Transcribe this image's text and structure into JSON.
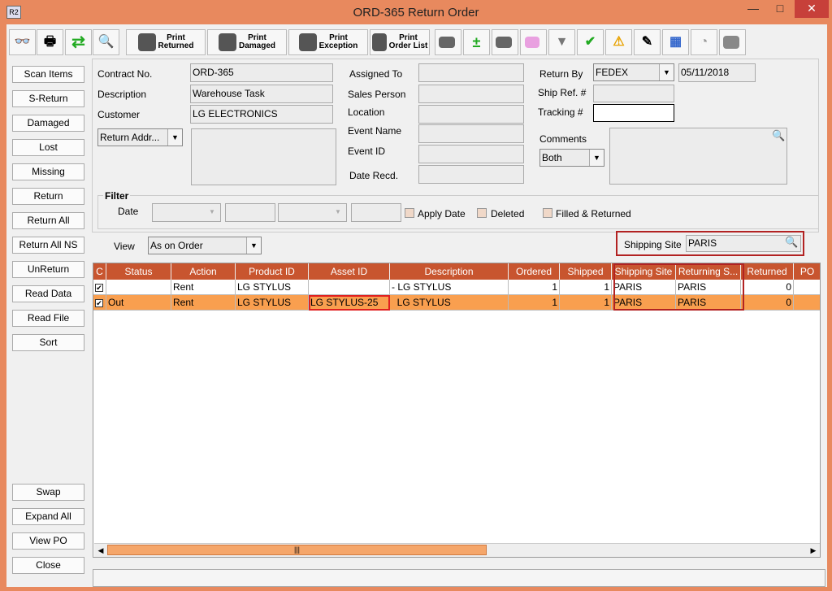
{
  "window": {
    "title": "ORD-365 Return Order",
    "icon_text": "R2"
  },
  "toolbar": {
    "print_returned": [
      "Print",
      "Returned"
    ],
    "print_damaged": [
      "Print",
      "Damaged"
    ],
    "print_exception": [
      "Print",
      "Exception"
    ],
    "print_order_list": [
      "Print",
      "Order List"
    ]
  },
  "left_buttons": [
    "Scan Items",
    "S-Return",
    "Damaged",
    "Lost",
    "Missing",
    "Return",
    "Return All",
    "Return All NS",
    "UnReturn",
    "Read Data",
    "Read File",
    "Sort"
  ],
  "bottom_buttons": [
    "Swap",
    "Expand All",
    "View PO",
    "Close"
  ],
  "form": {
    "contract_no_label": "Contract No.",
    "contract_no": "ORD-365",
    "description_label": "Description",
    "description": "Warehouse Task",
    "customer_label": "Customer",
    "customer": "LG ELECTRONICS",
    "return_addr": "Return Addr...",
    "assigned_to_label": "Assigned To",
    "sales_person_label": "Sales Person",
    "location_label": "Location",
    "event_name_label": "Event Name",
    "event_id_label": "Event ID",
    "date_recd_label": "Date Recd.",
    "return_by_label": "Return By",
    "return_by": "FEDEX",
    "return_date": "05/11/2018",
    "ship_ref_label": "Ship Ref. #",
    "tracking_label": "Tracking #",
    "comments_label": "Comments",
    "comments_select": "Both"
  },
  "filter": {
    "title": "Filter",
    "date_label": "Date",
    "apply_date": "Apply Date",
    "deleted": "Deleted",
    "filled_returned": "Filled & Returned"
  },
  "view": {
    "label": "View",
    "value": "As on Order",
    "shipping_site_label": "Shipping Site",
    "shipping_site": "PARIS"
  },
  "grid": {
    "columns": [
      "C",
      "Status",
      "Action",
      "Product ID",
      "Asset ID",
      "Description",
      "Ordered",
      "Shipped",
      "Shipping Site",
      "Returning S...",
      "Returned",
      "PO"
    ],
    "rows": [
      {
        "checked": true,
        "status": "",
        "action": "Rent",
        "product_id": "LG STYLUS",
        "asset_id": "",
        "description": "- LG STYLUS",
        "ordered": "1",
        "shipped": "1",
        "shipping_site": "PARIS",
        "returning_site": "PARIS",
        "returned": "0",
        "po": ""
      },
      {
        "checked": true,
        "status": "Out",
        "action": "Rent",
        "product_id": "LG STYLUS",
        "asset_id": "LG STYLUS-25",
        "description": "  LG STYLUS",
        "ordered": "1",
        "shipped": "1",
        "shipping_site": "PARIS",
        "returning_site": "PARIS",
        "returned": "0",
        "po": ""
      }
    ]
  },
  "colors": {
    "header": "#c8552f",
    "selected_row": "#f99f4f",
    "title_bar": "#e8895e",
    "highlight_border": "#b22222"
  }
}
